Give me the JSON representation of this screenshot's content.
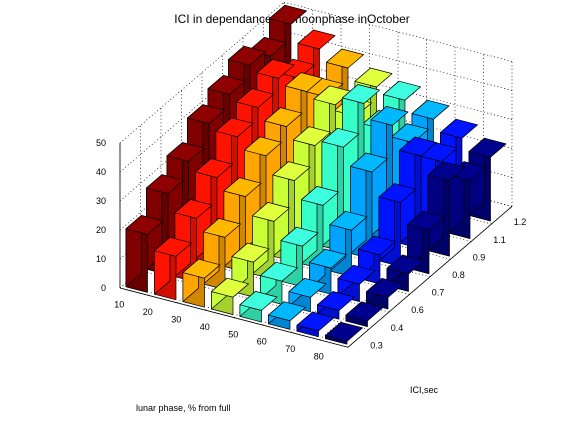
{
  "chart_data": {
    "type": "bar3d",
    "title": "ICI in dependance on moonphase inOctober",
    "xlabel": "ICI,sec",
    "ylabel": "lunar phase, % from full",
    "zlabel": "",
    "x_categories": [
      "0.3",
      "0.4",
      "0.6",
      "0.7",
      "0.8",
      "0.9",
      "1.1",
      "1.2"
    ],
    "y_categories": [
      "10",
      "20",
      "30",
      "40",
      "50",
      "60",
      "70",
      "80"
    ],
    "z_ticks": [
      "0",
      "10",
      "20",
      "30",
      "40",
      "50"
    ],
    "zlim": [
      0,
      50
    ],
    "grid": true,
    "colormap": "jet",
    "colormap_axis": "ICI,sec",
    "values": [
      [
        20,
        15,
        10,
        6,
        4,
        3,
        2,
        1
      ],
      [
        28,
        22,
        18,
        12,
        8,
        5,
        3,
        2
      ],
      [
        33,
        30,
        26,
        20,
        14,
        9,
        6,
        4
      ],
      [
        40,
        38,
        34,
        28,
        22,
        16,
        10,
        6
      ],
      [
        44,
        42,
        38,
        34,
        36,
        30,
        22,
        15
      ],
      [
        48,
        46,
        44,
        42,
        45,
        40,
        32,
        26
      ],
      [
        45,
        40,
        36,
        32,
        30,
        28,
        24,
        20
      ],
      [
        50,
        44,
        40,
        36,
        34,
        30,
        26,
        22
      ]
    ]
  }
}
